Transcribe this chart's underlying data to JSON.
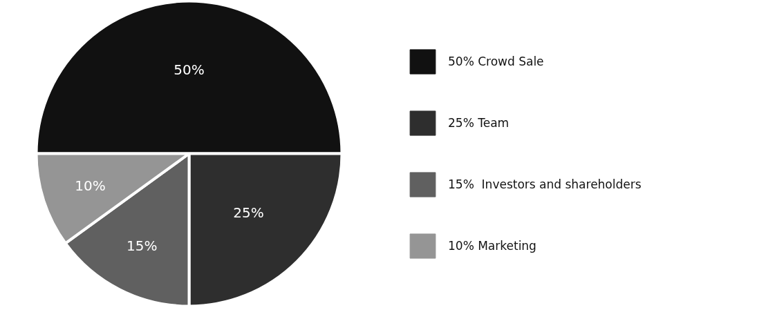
{
  "chart_data": {
    "type": "pie",
    "categories": [
      "50% Crowd Sale",
      "25% Team",
      "15%  Investors and shareholders",
      "10% Marketing"
    ],
    "values": [
      50,
      25,
      15,
      10
    ],
    "colors": [
      "#111111",
      "#2e2e2e",
      "#606060",
      "#959595"
    ],
    "value_labels": [
      "50%",
      "25%",
      "15%",
      "10%"
    ],
    "legend": "right"
  }
}
